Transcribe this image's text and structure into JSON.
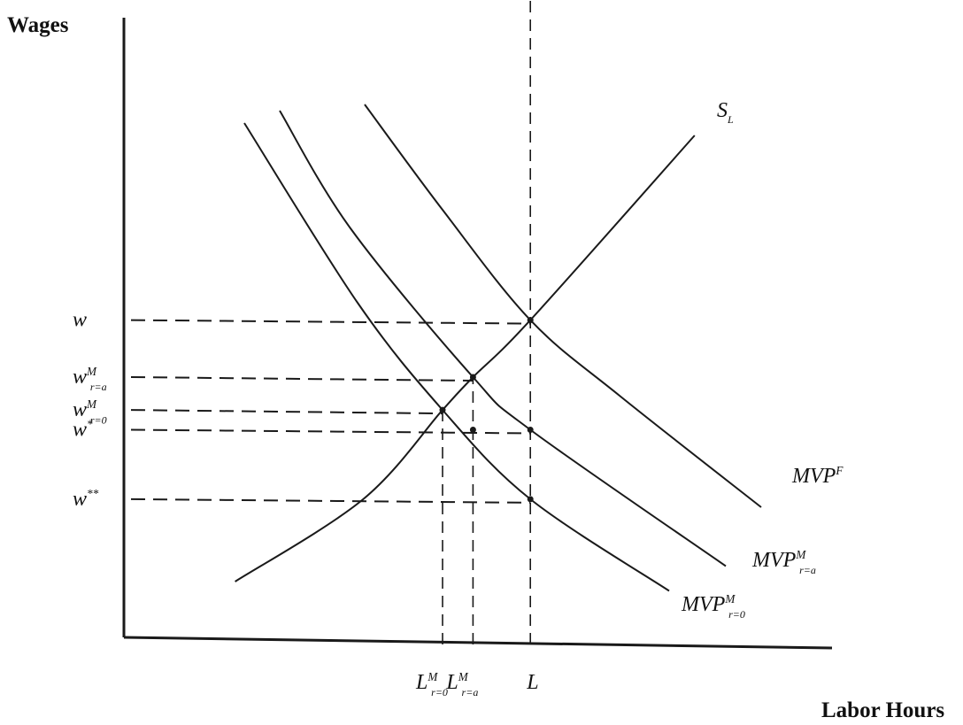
{
  "chart_data": {
    "type": "line",
    "xlabel": "Labor Hours",
    "ylabel": "Wages",
    "xlim": [
      0,
      10
    ],
    "ylim": [
      0,
      10
    ],
    "grid": false,
    "series": [
      {
        "name": "S_L",
        "label_main": "S",
        "label_sub": "L",
        "label_sup": "",
        "x": [
          1.57,
          3.38,
          4.5,
          4.93,
          5.74,
          8.06
        ],
        "y": [
          0.9,
          2.23,
          3.67,
          4.2,
          5.12,
          8.1
        ]
      },
      {
        "name": "MVP^F",
        "label_main": "MVP",
        "label_sub": "",
        "label_sup": "F",
        "x": [
          3.4,
          4.5,
          5.74,
          7.0,
          9.0
        ],
        "y": [
          8.6,
          6.9,
          5.12,
          3.9,
          2.1
        ]
      },
      {
        "name": "MVP^M_{r=a}",
        "label_main": "MVP",
        "label_sub": "r=a",
        "label_sup": "M",
        "x": [
          2.2,
          3.2,
          4.93,
          5.74,
          8.5
        ],
        "y": [
          8.5,
          6.6,
          4.2,
          3.35,
          1.15
        ]
      },
      {
        "name": "MVP^M_{r=0}",
        "label_main": "MVP",
        "label_sub": "r=0",
        "label_sup": "M",
        "x": [
          1.7,
          3.3,
          4.5,
          5.74,
          7.7
        ],
        "y": [
          8.3,
          5.4,
          3.67,
          2.23,
          0.75
        ]
      }
    ],
    "y_ticks": [
      {
        "id": "w",
        "main": "w",
        "sup": "",
        "sub": "",
        "y": 5.12
      },
      {
        "id": "w-m-ra",
        "main": "w",
        "sup": "M",
        "sub": "r=a",
        "y": 4.2
      },
      {
        "id": "w-m-r0",
        "main": "w",
        "sup": "M",
        "sub": "r=0",
        "y": 3.67
      },
      {
        "id": "w-star",
        "main": "w",
        "sup": "*",
        "sub": "",
        "y": 3.35
      },
      {
        "id": "w-starstar",
        "main": "w",
        "sup": "**",
        "sub": "",
        "y": 2.23
      }
    ],
    "x_ticks": [
      {
        "id": "l-m-r0",
        "main": "L",
        "sup": "M",
        "sub": "r=0",
        "x": 4.5
      },
      {
        "id": "l-m-ra",
        "main": "L",
        "sup": "M",
        "sub": "r=a",
        "x": 4.93
      },
      {
        "id": "l",
        "main": "L",
        "sup": "",
        "sub": "",
        "x": 5.74
      }
    ],
    "points": [
      {
        "x": 5.74,
        "y": 5.12
      },
      {
        "x": 4.93,
        "y": 4.2
      },
      {
        "x": 4.5,
        "y": 3.67
      },
      {
        "x": 4.93,
        "y": 3.35
      },
      {
        "x": 5.74,
        "y": 3.35
      },
      {
        "x": 5.74,
        "y": 2.23
      }
    ],
    "guides_h": [
      {
        "y": 5.12,
        "x_end": 5.74
      },
      {
        "y": 4.2,
        "x_end": 4.93
      },
      {
        "y": 3.67,
        "x_end": 4.5
      },
      {
        "y": 3.35,
        "x_end": 5.74
      },
      {
        "y": 2.23,
        "x_end": 5.74
      }
    ],
    "guides_v": [
      {
        "x": 5.74,
        "y_from": 0,
        "y_to": 10
      },
      {
        "x": 4.93,
        "y_from": 0,
        "y_to": 4.2
      },
      {
        "x": 4.5,
        "y_from": 0,
        "y_to": 3.67
      }
    ]
  }
}
